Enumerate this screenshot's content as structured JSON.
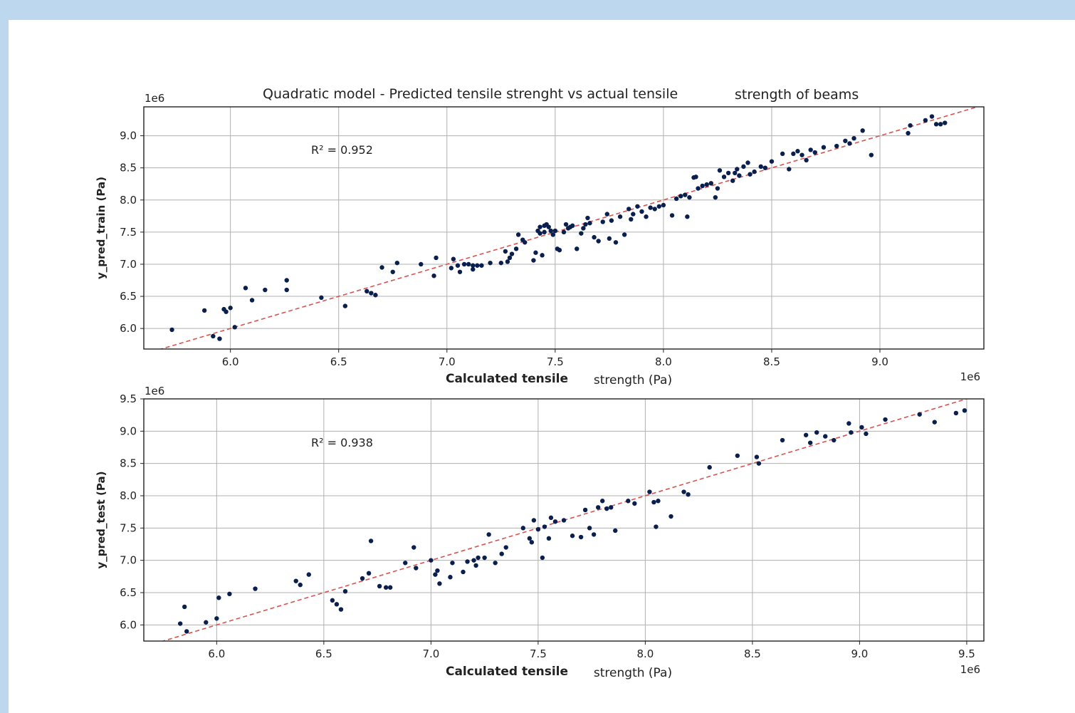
{
  "colors": {
    "background": "#bdd7ee",
    "points": "#0b1f4e",
    "fit_line": "#d9534f",
    "grid": "#b0b0b0"
  },
  "chart_data": [
    {
      "type": "scatter",
      "title_part1": "Quadratic model - Predicted tensile strenght vs actual tensile",
      "title_part2": "strength of beams",
      "xlabel_part1": "Calculated tensile",
      "xlabel_part2": "strength (Pa)",
      "ylabel": "y_pred_train (Pa)",
      "x_offset": "1e6",
      "y_offset": "1e6",
      "annotation": "R² = 0.952",
      "xlim": [
        5.6,
        9.48
      ],
      "ylim": [
        5.68,
        9.45
      ],
      "xticks": [
        "6.0",
        "6.5",
        "7.0",
        "7.5",
        "8.0",
        "8.5",
        "9.0"
      ],
      "yticks": [
        "6.0",
        "6.5",
        "7.0",
        "7.5",
        "8.0",
        "8.5",
        "9.0"
      ],
      "grid": true,
      "fit_line": "y = x",
      "x": [
        5.73,
        5.88,
        5.92,
        5.95,
        5.97,
        5.98,
        6.0,
        6.02,
        6.07,
        6.1,
        6.16,
        6.26,
        6.26,
        6.42,
        6.53,
        6.63,
        6.65,
        6.67,
        6.7,
        6.75,
        6.77,
        6.88,
        6.94,
        6.95,
        7.02,
        7.03,
        7.05,
        7.06,
        7.08,
        7.1,
        7.12,
        7.12,
        7.14,
        7.16,
        7.2,
        7.25,
        7.27,
        7.28,
        7.29,
        7.3,
        7.32,
        7.33,
        7.35,
        7.36,
        7.4,
        7.41,
        7.42,
        7.43,
        7.43,
        7.44,
        7.45,
        7.45,
        7.46,
        7.47,
        7.48,
        7.49,
        7.5,
        7.51,
        7.52,
        7.54,
        7.55,
        7.56,
        7.57,
        7.58,
        7.6,
        7.62,
        7.63,
        7.64,
        7.65,
        7.66,
        7.68,
        7.7,
        7.72,
        7.74,
        7.75,
        7.76,
        7.78,
        7.8,
        7.82,
        7.84,
        7.85,
        7.86,
        7.88,
        7.9,
        7.92,
        7.94,
        7.96,
        7.98,
        8.0,
        8.04,
        8.06,
        8.08,
        8.1,
        8.11,
        8.12,
        8.14,
        8.15,
        8.16,
        8.18,
        8.2,
        8.22,
        8.24,
        8.25,
        8.26,
        8.28,
        8.3,
        8.32,
        8.33,
        8.34,
        8.35,
        8.37,
        8.39,
        8.4,
        8.42,
        8.45,
        8.47,
        8.5,
        8.55,
        8.58,
        8.6,
        8.62,
        8.64,
        8.66,
        8.68,
        8.7,
        8.74,
        8.8,
        8.84,
        8.86,
        8.88,
        8.92,
        8.96,
        9.13,
        9.14,
        9.21,
        9.24,
        9.26,
        9.28,
        9.3
      ],
      "y": [
        5.98,
        6.28,
        5.88,
        5.84,
        6.3,
        6.26,
        6.32,
        6.02,
        6.63,
        6.44,
        6.6,
        6.6,
        6.75,
        6.48,
        6.35,
        6.58,
        6.55,
        6.52,
        6.95,
        6.88,
        7.02,
        7.0,
        6.82,
        7.1,
        6.94,
        7.08,
        6.98,
        6.88,
        7.0,
        7.0,
        6.92,
        6.98,
        6.98,
        6.98,
        7.02,
        7.02,
        7.2,
        7.04,
        7.1,
        7.16,
        7.24,
        7.46,
        7.38,
        7.34,
        7.06,
        7.18,
        7.52,
        7.58,
        7.48,
        7.14,
        7.6,
        7.5,
        7.62,
        7.58,
        7.52,
        7.46,
        7.52,
        7.24,
        7.22,
        7.5,
        7.62,
        7.56,
        7.58,
        7.6,
        7.24,
        7.48,
        7.56,
        7.62,
        7.72,
        7.64,
        7.42,
        7.36,
        7.66,
        7.78,
        7.4,
        7.68,
        7.34,
        7.74,
        7.46,
        7.86,
        7.7,
        7.78,
        7.9,
        7.82,
        7.74,
        7.88,
        7.86,
        7.9,
        7.92,
        7.76,
        8.02,
        8.06,
        8.08,
        7.74,
        8.04,
        8.35,
        8.36,
        8.18,
        8.22,
        8.24,
        8.26,
        8.04,
        8.18,
        8.46,
        8.36,
        8.42,
        8.3,
        8.42,
        8.48,
        8.38,
        8.52,
        8.58,
        8.4,
        8.44,
        8.52,
        8.5,
        8.6,
        8.72,
        8.48,
        8.72,
        8.76,
        8.7,
        8.62,
        8.78,
        8.74,
        8.82,
        8.84,
        8.92,
        8.88,
        8.96,
        9.08,
        8.7,
        9.04,
        9.16,
        9.24,
        9.3,
        9.18,
        9.18,
        9.2
      ]
    },
    {
      "type": "scatter",
      "xlabel_part1": "Calculated tensile",
      "xlabel_part2": "strength (Pa)",
      "ylabel": "y_pred_test (Pa)",
      "x_offset": "1e6",
      "y_offset": "1e6",
      "annotation": "R² = 0.938",
      "xlim": [
        5.66,
        9.58
      ],
      "ylim": [
        5.75,
        9.5
      ],
      "xticks": [
        "6.0",
        "6.5",
        "7.0",
        "7.5",
        "8.0",
        "8.5",
        "9.0",
        "9.5"
      ],
      "yticks": [
        "6.0",
        "6.5",
        "7.0",
        "7.5",
        "8.0",
        "8.5",
        "9.0",
        "9.5"
      ],
      "grid": true,
      "fit_line": "y = x",
      "x": [
        5.83,
        5.85,
        5.86,
        5.95,
        6.0,
        6.01,
        6.06,
        6.18,
        6.37,
        6.39,
        6.43,
        6.54,
        6.56,
        6.58,
        6.6,
        6.68,
        6.71,
        6.72,
        6.76,
        6.79,
        6.81,
        6.88,
        6.92,
        6.93,
        7.0,
        7.02,
        7.03,
        7.04,
        7.09,
        7.1,
        7.15,
        7.17,
        7.2,
        7.21,
        7.22,
        7.25,
        7.27,
        7.3,
        7.33,
        7.35,
        7.43,
        7.46,
        7.47,
        7.48,
        7.5,
        7.52,
        7.53,
        7.55,
        7.56,
        7.58,
        7.62,
        7.66,
        7.7,
        7.72,
        7.74,
        7.76,
        7.78,
        7.8,
        7.82,
        7.84,
        7.86,
        7.92,
        7.95,
        8.02,
        8.04,
        8.05,
        8.06,
        8.12,
        8.18,
        8.2,
        8.3,
        8.43,
        8.52,
        8.53,
        8.64,
        8.75,
        8.77,
        8.8,
        8.84,
        8.88,
        8.95,
        8.96,
        9.01,
        9.03,
        9.12,
        9.28,
        9.35,
        9.45,
        9.49
      ],
      "y": [
        6.02,
        6.28,
        5.9,
        6.04,
        6.1,
        6.42,
        6.48,
        6.56,
        6.68,
        6.62,
        6.78,
        6.38,
        6.32,
        6.24,
        6.52,
        6.72,
        6.8,
        7.3,
        6.6,
        6.58,
        6.58,
        6.96,
        7.2,
        6.88,
        7.0,
        6.78,
        6.84,
        6.64,
        6.74,
        6.96,
        6.82,
        6.98,
        7.0,
        6.92,
        7.04,
        7.04,
        7.4,
        6.96,
        7.1,
        7.2,
        7.5,
        7.34,
        7.28,
        7.62,
        7.48,
        7.04,
        7.52,
        7.34,
        7.66,
        7.6,
        7.62,
        7.38,
        7.36,
        7.78,
        7.5,
        7.4,
        7.82,
        7.92,
        7.8,
        7.82,
        7.46,
        7.92,
        7.88,
        8.06,
        7.9,
        7.52,
        7.92,
        7.68,
        8.06,
        8.02,
        8.44,
        8.62,
        8.6,
        8.5,
        8.86,
        8.94,
        8.82,
        8.98,
        8.92,
        8.86,
        9.12,
        8.98,
        9.06,
        8.96,
        9.18,
        9.26,
        9.14,
        9.28,
        9.32
      ]
    }
  ]
}
